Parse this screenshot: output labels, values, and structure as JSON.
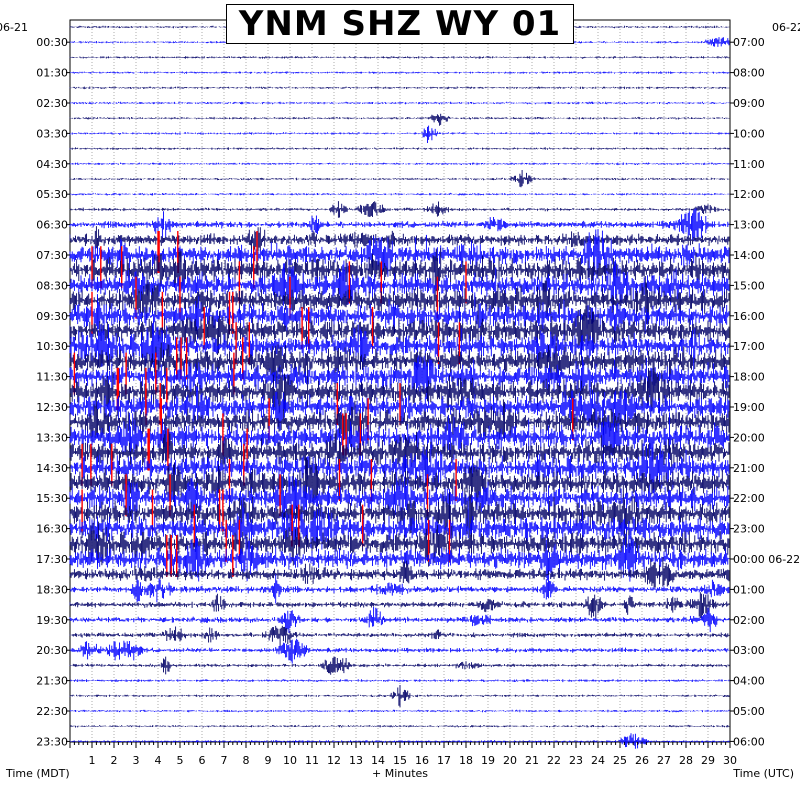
{
  "title": "YNM SHZ WY 01",
  "chart_data": {
    "type": "helicorder",
    "station_label": "YNM SHZ WY 01",
    "date_left": "06-21",
    "date_right": "06-22",
    "left_axis_label": "Time (MDT)",
    "right_axis_label": "Time (UTC)",
    "x_axis_label": "+ Minutes",
    "x_ticks": [
      1,
      2,
      3,
      4,
      5,
      6,
      7,
      8,
      9,
      10,
      11,
      12,
      13,
      14,
      15,
      16,
      17,
      18,
      19,
      20,
      21,
      22,
      23,
      24,
      25,
      26,
      27,
      28,
      29,
      30
    ],
    "xlim": [
      0,
      30
    ],
    "left_ticks": [
      "00:30",
      "01:30",
      "02:30",
      "03:30",
      "04:30",
      "05:30",
      "06:30",
      "07:30",
      "08:30",
      "09:30",
      "10:30",
      "11:30",
      "12:30",
      "13:30",
      "14:30",
      "15:30",
      "16:30",
      "17:30",
      "18:30",
      "19:30",
      "20:30",
      "21:30",
      "22:30",
      "23:30"
    ],
    "right_ticks": [
      "07:00",
      "08:00",
      "09:00",
      "10:00",
      "11:00",
      "12:00",
      "13:00",
      "14:00",
      "15:00",
      "16:00",
      "17:00",
      "18:00",
      "19:00",
      "20:00",
      "21:00",
      "22:00",
      "23:00",
      "00:00 06-22",
      "01:00",
      "02:00",
      "03:00",
      "04:00",
      "05:00",
      "06:00"
    ],
    "trace_count": 48,
    "minutes_per_trace": 30,
    "trace_colors": [
      "#000066",
      "#0000ff"
    ],
    "clip_color": "#ff0000",
    "activity_profile": [
      1,
      1,
      1,
      1,
      1,
      1,
      1,
      1,
      1,
      1,
      1,
      1,
      1.4,
      3,
      5,
      9,
      10,
      10,
      10,
      10,
      10,
      10,
      10,
      10,
      10,
      10,
      10,
      10,
      10,
      10,
      10,
      10,
      10,
      10,
      10,
      9,
      5,
      3,
      2.5,
      2.5,
      2,
      2,
      1.5,
      1.2,
      1,
      1,
      1,
      1
    ]
  }
}
